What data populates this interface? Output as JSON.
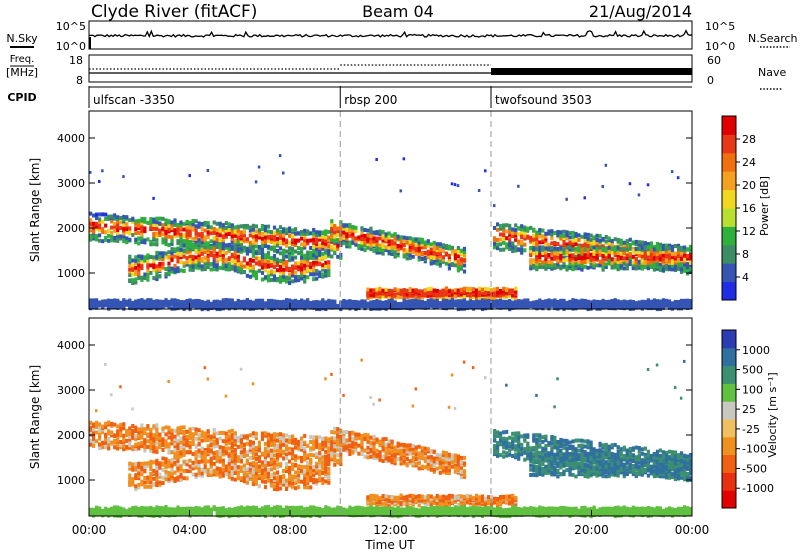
{
  "header": {
    "station": "Clyde River (fitACF)",
    "beam": "Beam 04",
    "date": "21/Aug/2014"
  },
  "noise_panel": {
    "left_label": "N.Sky",
    "right_label": "N.Search",
    "left_ticks": [
      "10^5",
      "10^0"
    ],
    "right_ticks": [
      "10^5",
      "10^0"
    ]
  },
  "freq_panel": {
    "left_label_1": "Freq.",
    "left_label_2": "[MHz]",
    "right_label": "Nave",
    "left_ticks": [
      "18",
      "8"
    ],
    "right_ticks": [
      "60",
      "0"
    ]
  },
  "cpid": {
    "label": "CPID",
    "segments": [
      {
        "name": "ulfscan -3350",
        "start_hour": 0
      },
      {
        "name": "rbsp 200",
        "start_hour": 10
      },
      {
        "name": "twofsound 3503",
        "start_hour": 16
      }
    ]
  },
  "chart_data": [
    {
      "type": "heatmap",
      "title": "Power",
      "xlabel": "",
      "ylabel": "Slant Range [km]",
      "xlim": [
        0,
        24
      ],
      "ylim": [
        200,
        4600
      ],
      "yticks": [
        "1000",
        "2000",
        "3000",
        "4000"
      ],
      "colorbar_label": "Power [dB]",
      "colorbar_ticks": [
        "4",
        "8",
        "12",
        "16",
        "20",
        "24",
        "28"
      ],
      "colorbar_colors": [
        "#1f2ee6",
        "#3555b4",
        "#3c8c64",
        "#2fb03c",
        "#b8e02e",
        "#f0d81e",
        "#f5a020",
        "#f07010",
        "#e83818",
        "#e00000"
      ]
    },
    {
      "type": "heatmap",
      "title": "Velocity",
      "xlabel": "Time UT",
      "ylabel": "Slant Range [km]",
      "xlim": [
        0,
        24
      ],
      "ylim": [
        200,
        4600
      ],
      "yticks": [
        "1000",
        "2000",
        "3000",
        "4000"
      ],
      "xticks": [
        "00:00",
        "04:00",
        "08:00",
        "12:00",
        "16:00",
        "20:00",
        "00:00"
      ],
      "colorbar_label": "Velocity [m s⁻¹]",
      "colorbar_ticks": [
        "1000",
        "500",
        "100",
        "25",
        "-25",
        "-100",
        "-500",
        "-1000"
      ],
      "colorbar_colors": [
        "#2c3cb4",
        "#3070a0",
        "#3c9070",
        "#60c040",
        "#c8c8c0",
        "#f0c060",
        "#f09020",
        "#f06010",
        "#e83010",
        "#e00000"
      ]
    }
  ],
  "colors": {
    "sky_noise": "#000000",
    "freq_trace": "#000000"
  }
}
